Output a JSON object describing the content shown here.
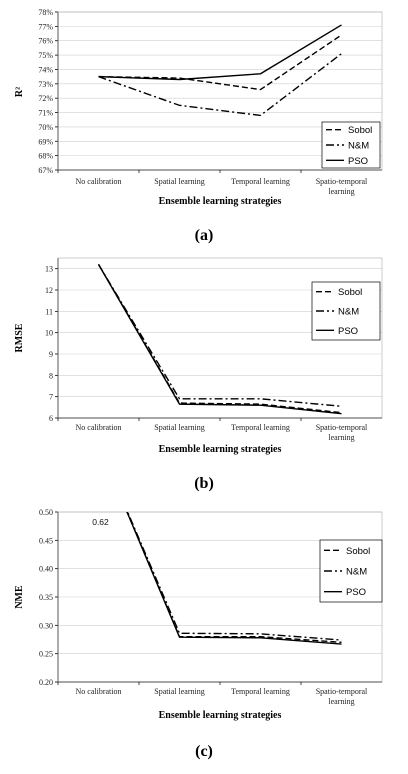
{
  "chart_data": [
    {
      "type": "line",
      "panel": "(a)",
      "xlabel": "Ensemble learning strategies",
      "ylabel": "R²",
      "categories": [
        "No calibration",
        "Spatial learning",
        "Temporal learning",
        "Spatio-temporal learning"
      ],
      "ytick_labels": [
        "67%",
        "68%",
        "69%",
        "70%",
        "71%",
        "72%",
        "73%",
        "74%",
        "75%",
        "76%",
        "77%",
        "78%"
      ],
      "ylim": [
        0.67,
        0.78
      ],
      "series": [
        {
          "name": "Sobol",
          "dash": "dashed",
          "values": [
            0.735,
            0.734,
            0.726,
            0.764
          ]
        },
        {
          "name": "N&M",
          "dash": "dashdot",
          "values": [
            0.735,
            0.715,
            0.708,
            0.751
          ]
        },
        {
          "name": "PSO",
          "dash": "solid",
          "values": [
            0.735,
            0.733,
            0.737,
            0.771
          ]
        }
      ],
      "legend": "right",
      "grid": "horizontal"
    },
    {
      "type": "line",
      "panel": "(b)",
      "xlabel": "Ensemble learning strategies",
      "ylabel": "RMSE",
      "categories": [
        "No calibration",
        "Spatial learning",
        "Temporal learning",
        "Spatio-temporal learning"
      ],
      "ytick_labels": [
        "6",
        "7",
        "8",
        "9",
        "10",
        "11",
        "12",
        "13"
      ],
      "ylim": [
        6,
        13.5
      ],
      "series": [
        {
          "name": "Sobol",
          "dash": "dashed",
          "values": [
            13.2,
            6.7,
            6.65,
            6.25
          ]
        },
        {
          "name": "N&M",
          "dash": "dashdot",
          "values": [
            13.2,
            6.9,
            6.9,
            6.55
          ]
        },
        {
          "name": "PSO",
          "dash": "solid",
          "values": [
            13.2,
            6.65,
            6.6,
            6.2
          ]
        }
      ],
      "legend": "top-right",
      "grid": "horizontal"
    },
    {
      "type": "line",
      "panel": "(c)",
      "xlabel": "Ensemble learning strategies",
      "ylabel": "NME",
      "categories": [
        "No calibration",
        "Spatial learning",
        "Temporal learning",
        "Spatio-temporal learning"
      ],
      "ytick_labels": [
        "0.20",
        "0.25",
        "0.30",
        "0.35",
        "0.40",
        "0.45",
        "0.50"
      ],
      "ylim": [
        0.2,
        0.5
      ],
      "annotation": "0.62",
      "series": [
        {
          "name": "Sobol",
          "dash": "dashed",
          "values": [
            0.62,
            0.28,
            0.28,
            0.27
          ]
        },
        {
          "name": "N&M",
          "dash": "dashdot",
          "values": [
            0.62,
            0.286,
            0.285,
            0.274
          ]
        },
        {
          "name": "PSO",
          "dash": "solid",
          "values": [
            0.62,
            0.279,
            0.278,
            0.267
          ]
        }
      ],
      "legend": "top-right",
      "grid": "horizontal"
    }
  ]
}
